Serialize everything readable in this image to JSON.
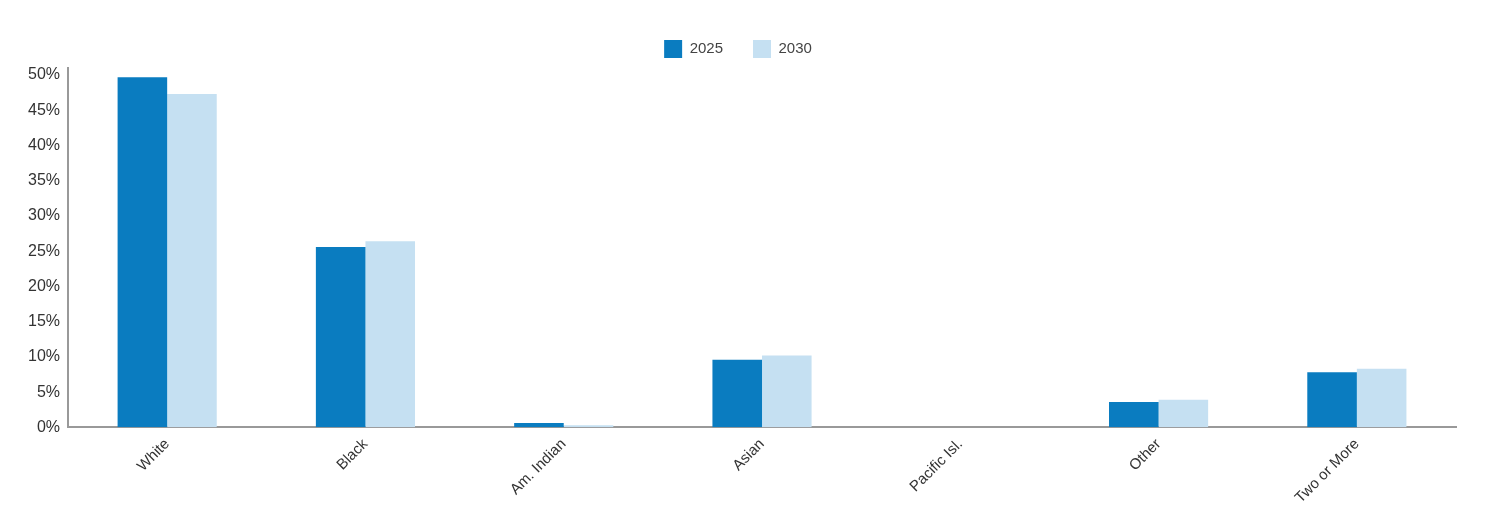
{
  "chart_data": {
    "type": "bar",
    "categories": [
      "White",
      "Black",
      "Am. Indian",
      "Asian",
      "Pacific Isl.",
      "Other",
      "Two or More"
    ],
    "series": [
      {
        "name": "2025",
        "color": "#0a7cc0",
        "values": [
          49.7,
          25.6,
          0.6,
          9.6,
          null,
          3.6,
          7.8
        ]
      },
      {
        "name": "2030",
        "color": "#c5e0f2",
        "values": [
          47.3,
          26.4,
          0.3,
          10.2,
          null,
          3.9,
          8.3
        ]
      }
    ],
    "ylim": [
      0,
      51
    ],
    "yticks": [
      {
        "value": 0,
        "label": "0%"
      },
      {
        "value": 5,
        "label": "5%"
      },
      {
        "value": 10,
        "label": "10%"
      },
      {
        "value": 15,
        "label": "15%"
      },
      {
        "value": 20,
        "label": "20%"
      },
      {
        "value": 25,
        "label": "25%"
      },
      {
        "value": 30,
        "label": "30%"
      },
      {
        "value": 35,
        "label": "35%"
      },
      {
        "value": 40,
        "label": "40%"
      },
      {
        "value": 45,
        "label": "45%"
      },
      {
        "value": 50,
        "label": "50%"
      }
    ],
    "grid": false,
    "legend": "top"
  }
}
